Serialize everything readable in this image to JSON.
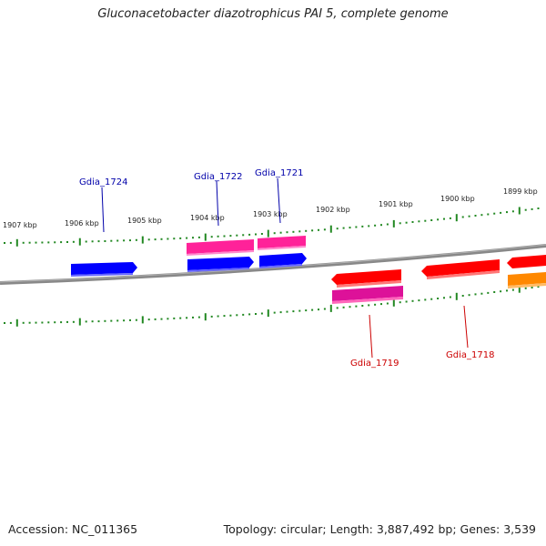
{
  "title": "Gluconacetobacter diazotrophicus PAI 5, complete genome",
  "accession": "Accession: NC_011365",
  "stats": "Topology: circular; Length: 3,887,492 bp; Genes: 3,539",
  "colors": {
    "plus_label": "#0000aa",
    "minus_label": "#cc0000",
    "ticks": "#228822",
    "backbone": "#888888",
    "cds_blue": "#0000ff",
    "cds_pink": "#ff2299",
    "cds_red": "#ff0000",
    "cds_orange": "#ff8800"
  },
  "scale": {
    "unit": "kbp",
    "labels": [
      "1907 kbp",
      "1906 kbp",
      "1905 kbp",
      "1904 kbp",
      "1903 kbp",
      "1902 kbp",
      "1901 kbp",
      "1900 kbp",
      "1899 kbp"
    ]
  },
  "genes": {
    "plus_strand": [
      {
        "name": "Gdia_1724",
        "color": "#0000ff",
        "direction": "forward"
      },
      {
        "name": "Gdia_1722",
        "color": "#0000ff",
        "direction": "forward"
      },
      {
        "name": "Gdia_1721",
        "color": "#0000ff",
        "direction": "forward"
      }
    ],
    "minus_strand": [
      {
        "name": "Gdia_1719",
        "color": "#ff0000",
        "direction": "reverse"
      },
      {
        "name": "Gdia_1718",
        "color": "#ff0000",
        "direction": "reverse"
      }
    ]
  }
}
